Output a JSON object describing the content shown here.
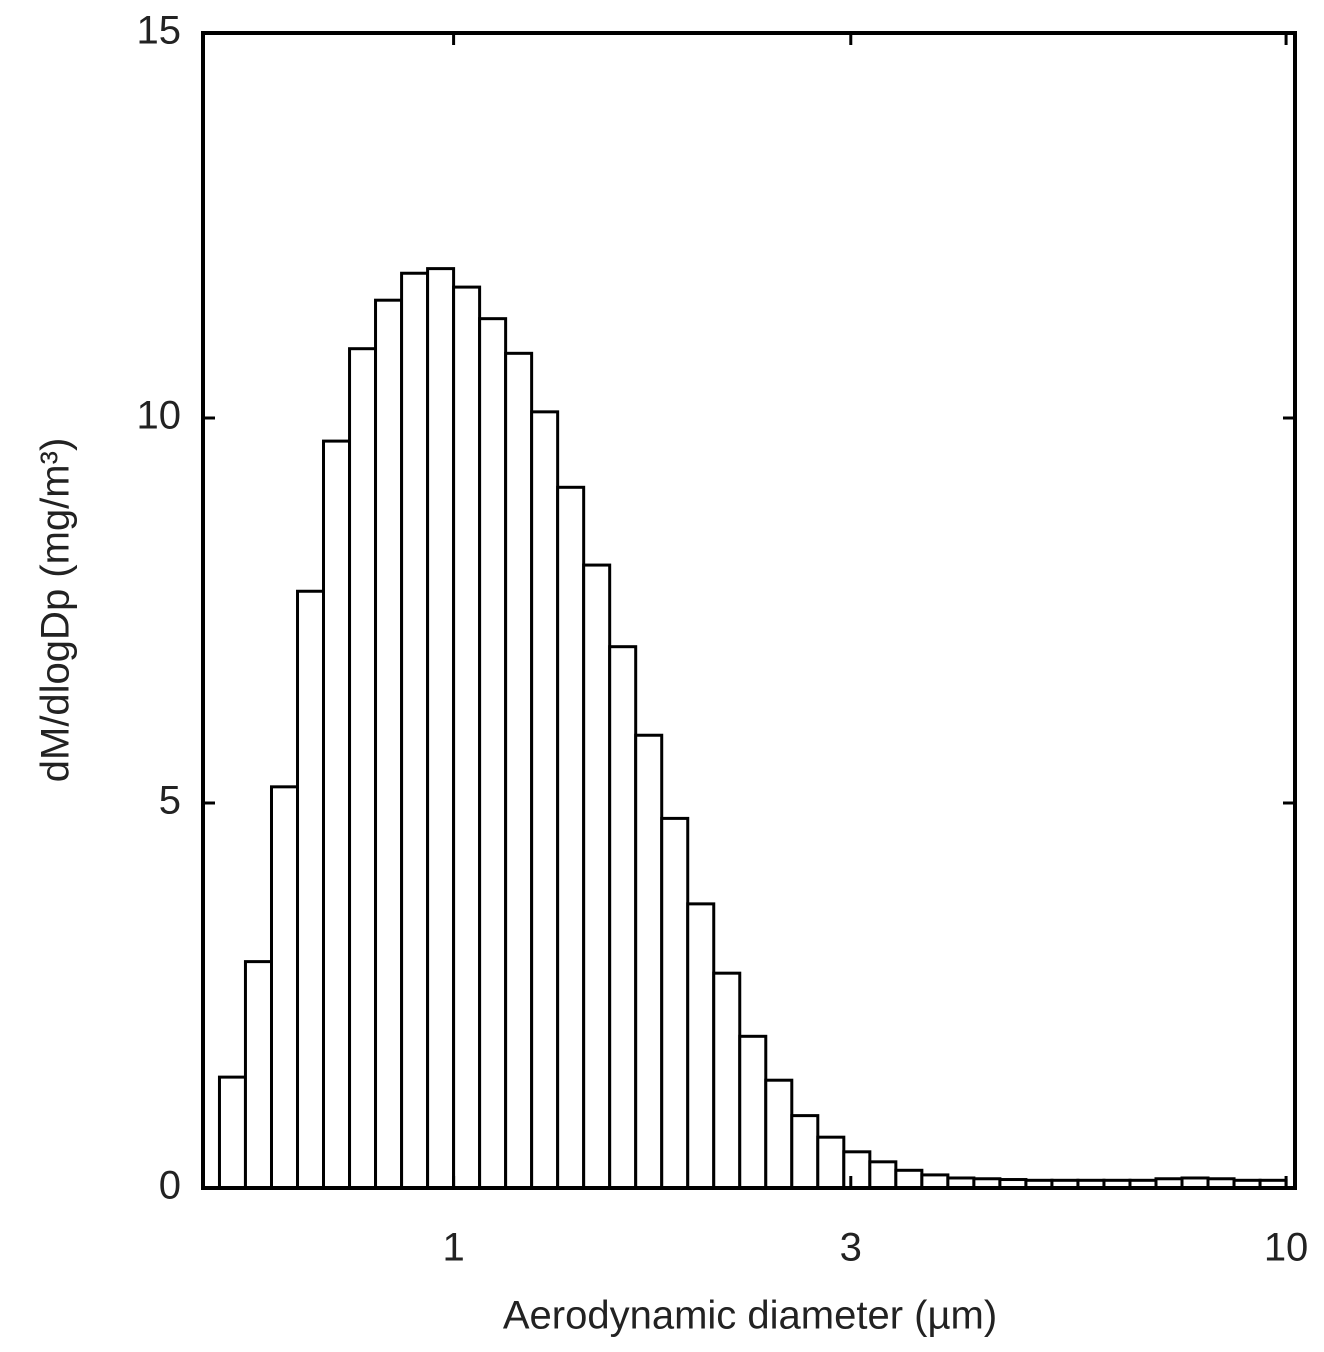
{
  "chart_data": {
    "type": "histogram",
    "x_label": "Aerodynamic diameter (µm)",
    "y_label": "dM/dlogDp (mg/m³)",
    "x_log_scale": true,
    "color": "#ffffff",
    "edge_color": "#000000",
    "bins": [
      0.5233,
      0.5623,
      0.6043,
      0.6494,
      0.6978,
      0.7499,
      0.8058,
      0.866,
      0.9306,
      1,
      1.0746,
      1.1548,
      1.2409,
      1.3335,
      1.433,
      1.5399,
      1.6548,
      1.7783,
      1.911,
      2.0535,
      2.2067,
      2.3714,
      2.5483,
      2.7384,
      2.9427,
      3.1623,
      3.3982,
      3.6517,
      3.9242,
      4.217,
      4.5316,
      4.8697,
      5.233,
      5.6234,
      6.043,
      6.4938,
      6.9783,
      7.4989,
      8.0584,
      8.6596,
      9.3057,
      10
    ],
    "values": [
      1.44,
      2.94,
      5.21,
      7.75,
      9.7,
      10.9,
      11.53,
      11.88,
      11.94,
      11.7,
      11.29,
      10.84,
      10.08,
      9.1,
      8.09,
      7.03,
      5.88,
      4.8,
      3.69,
      2.79,
      1.97,
      1.4,
      0.94,
      0.66,
      0.47,
      0.34,
      0.23,
      0.17,
      0.13,
      0.12,
      0.11,
      0.1,
      0.1,
      0.1,
      0.1,
      0.1,
      0.12,
      0.13,
      0.12,
      0.1,
      0.1
    ],
    "xlim": [
      0.5,
      10.25
    ],
    "xticks": [
      1,
      3,
      10
    ],
    "ylim": [
      0,
      15
    ],
    "yticks": [
      0,
      5,
      10,
      15
    ]
  }
}
